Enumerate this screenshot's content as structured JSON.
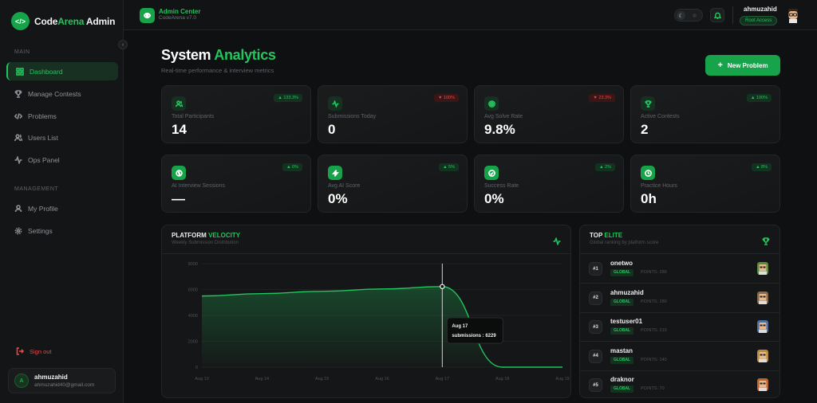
{
  "brand": {
    "part1": "Code",
    "part2": "Arena",
    "part3": " Admin"
  },
  "sidebar": {
    "main_label": "MAIN",
    "management_label": "MANAGEMENT",
    "items": [
      {
        "label": "Dashboard",
        "icon": "grid-icon"
      },
      {
        "label": "Manage Contests",
        "icon": "trophy-icon"
      },
      {
        "label": "Problems",
        "icon": "code-icon"
      },
      {
        "label": "Users List",
        "icon": "users-icon"
      },
      {
        "label": "Ops Panel",
        "icon": "activity-icon"
      }
    ],
    "management_items": [
      {
        "label": "My Profile",
        "icon": "user-icon"
      },
      {
        "label": "Settings",
        "icon": "gear-icon"
      }
    ],
    "signout": "Sign out",
    "user": {
      "initial": "A",
      "name": "ahmuzahid",
      "email": "ahmuzahid40@gmail.com"
    }
  },
  "topbar": {
    "title": "Admin Center",
    "subtitle": "CodeArena v7.0",
    "username": "ahmuzahid",
    "role": "Root Access"
  },
  "page": {
    "title_a": "System ",
    "title_b": "Analytics",
    "subtitle": "Real-time performance & interview metrics",
    "new_button": "New Problem"
  },
  "stats": [
    {
      "label": "Total Participants",
      "value": "14",
      "badge": "▲ 133.3%",
      "trend": "up",
      "icon": "users-icon"
    },
    {
      "label": "Submissions Today",
      "value": "0",
      "badge": "▼ 100%",
      "trend": "down",
      "icon": "activity-icon"
    },
    {
      "label": "Avg Solve Rate",
      "value": "9.8%",
      "badge": "▼ 23.3%",
      "trend": "down",
      "icon": "target-icon"
    },
    {
      "label": "Active Contests",
      "value": "2",
      "badge": "▲ 100%",
      "trend": "up",
      "icon": "trophy-icon"
    },
    {
      "label": "AI Interview Sessions",
      "value": "—",
      "badge": "▲ 0%",
      "trend": "up",
      "icon": "brain-icon"
    },
    {
      "label": "Avg AI Score",
      "value": "0%",
      "badge": "▲ 5%",
      "trend": "up",
      "icon": "zap-icon"
    },
    {
      "label": "Success Rate",
      "value": "0%",
      "badge": "▲ 2%",
      "trend": "up",
      "icon": "check-circle-icon"
    },
    {
      "label": "Practice Hours",
      "value": "0h",
      "badge": "▲ 8%",
      "trend": "up",
      "icon": "clock-icon"
    }
  ],
  "velocity": {
    "title_a": "PLATFORM ",
    "title_b": "VELOCITY",
    "subtitle": "Weekly Submission Distribution"
  },
  "chart_data": {
    "type": "area",
    "x": [
      "Aug 13",
      "Aug 14",
      "Aug 15",
      "Aug 16",
      "Aug 17",
      "Aug 18",
      "Aug 19"
    ],
    "series": [
      {
        "name": "submissions",
        "values": [
          5500,
          5680,
          5860,
          6040,
          6229,
          0,
          0
        ]
      }
    ],
    "ylim": [
      0,
      8000
    ],
    "yticks": [
      "8000",
      "6000",
      "4000",
      "2000",
      "0"
    ],
    "grid": true,
    "tooltip": {
      "title": "Aug 17",
      "text": "submissions : 6229",
      "index": 4
    },
    "color": "#22c55e"
  },
  "leaderboard": {
    "title_a": "TOP ",
    "title_b": "ELITE",
    "subtitle": "Global ranking by platform score",
    "rows": [
      {
        "rank": "#1",
        "name": "onetwo",
        "tag": "GLOBAL",
        "points": "POINTS: 280",
        "avatar_color": "#5a8f3a"
      },
      {
        "rank": "#2",
        "name": "ahmuzahid",
        "tag": "GLOBAL",
        "points": "POINTS: 280",
        "avatar_color": "#8a6a4a"
      },
      {
        "rank": "#3",
        "name": "testuser01",
        "tag": "GLOBAL",
        "points": "POINTS: 210",
        "avatar_color": "#4a6fa0"
      },
      {
        "rank": "#4",
        "name": "mastan",
        "tag": "GLOBAL",
        "points": "POINTS: 140",
        "avatar_color": "#b88a3a"
      },
      {
        "rank": "#5",
        "name": "draknor",
        "tag": "GLOBAL",
        "points": "POINTS: 70",
        "avatar_color": "#c0642a"
      }
    ]
  },
  "colors": {
    "accent": "#22c55e",
    "danger": "#ef4444",
    "bg": "#0f1011"
  }
}
